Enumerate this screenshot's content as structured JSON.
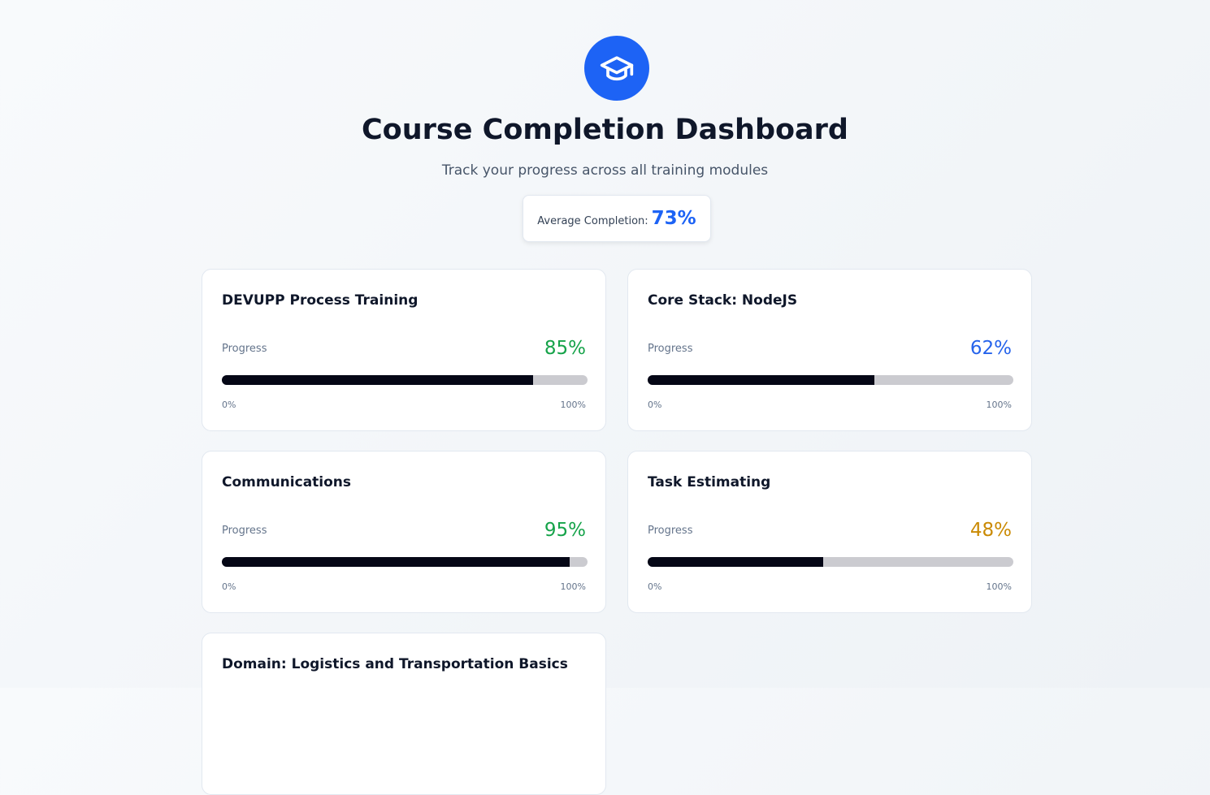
{
  "header": {
    "title": "Course Completion Dashboard",
    "subtitle": "Track your progress across all training modules"
  },
  "summary": {
    "label": "Average Completion:",
    "value": "73%"
  },
  "cards": [
    {
      "title": "DEVUPP Process Training",
      "progress_label": "Progress",
      "value": 85,
      "value_label": "85%",
      "color": "#16a34a",
      "ticks": [
        {
          "value": 0,
          "label": "0%"
        },
        {
          "value": 100,
          "label": "100%"
        }
      ]
    },
    {
      "title": "Core Stack: NodeJS",
      "progress_label": "Progress",
      "value": 62,
      "value_label": "62%",
      "color": "#2563eb",
      "ticks": [
        {
          "value": 0,
          "label": "0%"
        },
        {
          "value": 100,
          "label": "100%"
        }
      ]
    },
    {
      "title": "Communications",
      "progress_label": "Progress",
      "value": 95,
      "value_label": "95%",
      "color": "#16a34a",
      "ticks": [
        {
          "value": 0,
          "label": "0%"
        },
        {
          "value": 100,
          "label": "100%"
        }
      ]
    },
    {
      "title": "Task Estimating",
      "progress_label": "Progress",
      "value": 48,
      "value_label": "48%",
      "color": "#ca8a04",
      "ticks": [
        {
          "value": 0,
          "label": "0%"
        },
        {
          "value": 100,
          "label": "100%"
        }
      ]
    },
    {
      "title": "Domain: Logistics and Transportation Basics"
    }
  ]
}
